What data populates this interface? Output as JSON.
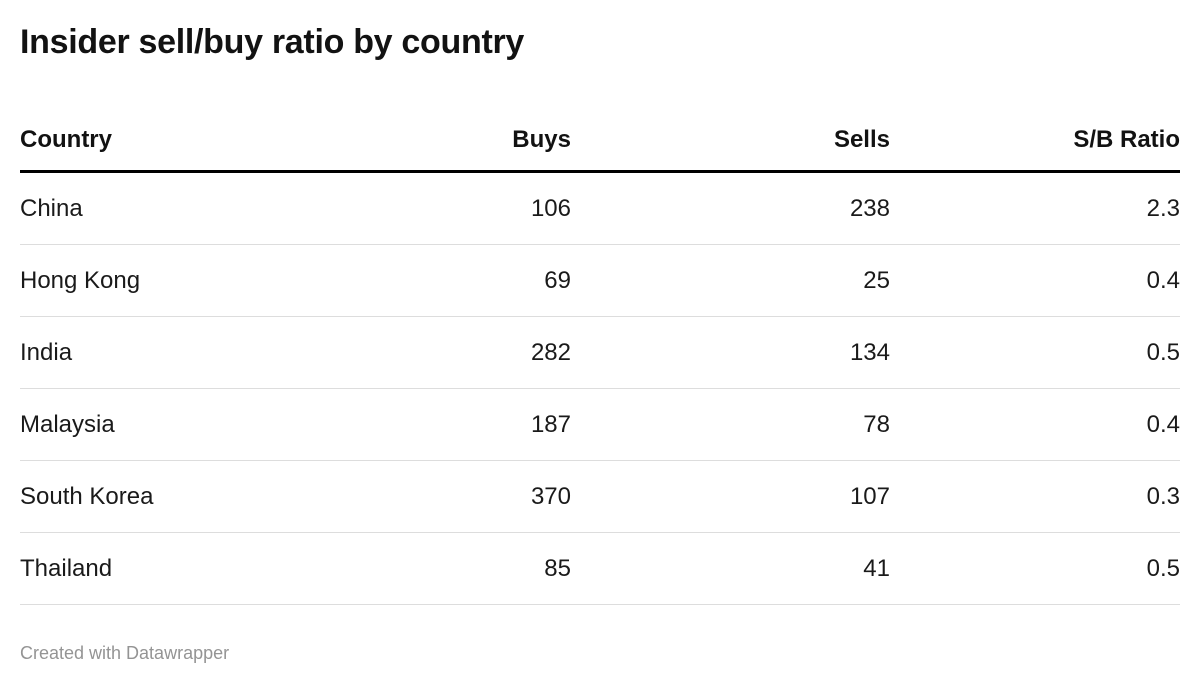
{
  "title": "Insider sell/buy ratio by country",
  "footer": {
    "credit": "Created with Datawrapper"
  },
  "chart_data": {
    "type": "table",
    "title": "Insider sell/buy ratio by country",
    "columns": [
      "Country",
      "Buys",
      "Sells",
      "S/B Ratio"
    ],
    "column_alignment": [
      "left",
      "right",
      "right",
      "right"
    ],
    "rows": [
      {
        "country": "China",
        "buys": "106",
        "sells": "238",
        "sb_ratio": "2.3"
      },
      {
        "country": "Hong Kong",
        "buys": "69",
        "sells": "25",
        "sb_ratio": "0.4"
      },
      {
        "country": "India",
        "buys": "282",
        "sells": "134",
        "sb_ratio": "0.5"
      },
      {
        "country": "Malaysia",
        "buys": "187",
        "sells": "78",
        "sb_ratio": "0.4"
      },
      {
        "country": "South Korea",
        "buys": "370",
        "sells": "107",
        "sb_ratio": "0.3"
      },
      {
        "country": "Thailand",
        "buys": "85",
        "sells": "41",
        "sb_ratio": "0.5"
      }
    ],
    "layout": {
      "header_border": "#000000",
      "row_separator": "#dddddd",
      "background": "#ffffff"
    }
  }
}
